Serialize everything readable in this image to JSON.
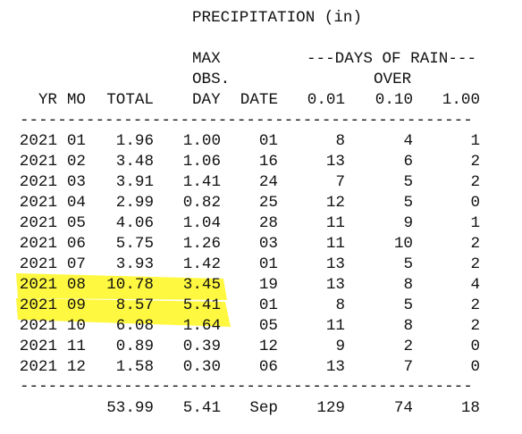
{
  "title": "PRECIPITATION (in)",
  "header": {
    "max_lines": [
      "MAX",
      "OBS.",
      "DAY"
    ],
    "rain_group": "---DAYS OF RAIN---",
    "rain_over": "OVER",
    "columns": [
      "YR",
      "MO",
      "TOTAL",
      "DATE",
      "0.01",
      "0.10",
      "1.00"
    ]
  },
  "separator": "------------------------------------------------",
  "rows": [
    [
      "2021",
      "01",
      "1.96",
      "1.00",
      "01",
      "8",
      "4",
      "1"
    ],
    [
      "2021",
      "02",
      "3.48",
      "1.06",
      "16",
      "13",
      "6",
      "2"
    ],
    [
      "2021",
      "03",
      "3.91",
      "1.41",
      "24",
      "7",
      "5",
      "2"
    ],
    [
      "2021",
      "04",
      "2.99",
      "0.82",
      "25",
      "12",
      "5",
      "0"
    ],
    [
      "2021",
      "05",
      "4.06",
      "1.04",
      "28",
      "11",
      "9",
      "1"
    ],
    [
      "2021",
      "06",
      "5.75",
      "1.26",
      "03",
      "11",
      "10",
      "2"
    ],
    [
      "2021",
      "07",
      "3.93",
      "1.42",
      "01",
      "13",
      "5",
      "2"
    ],
    [
      "2021",
      "08",
      "10.78",
      "3.45",
      "19",
      "13",
      "8",
      "4"
    ],
    [
      "2021",
      "09",
      "8.57",
      "5.41",
      "01",
      "8",
      "5",
      "2"
    ],
    [
      "2021",
      "10",
      "6.08",
      "1.64",
      "05",
      "11",
      "8",
      "2"
    ],
    [
      "2021",
      "11",
      "0.89",
      "0.39",
      "12",
      "9",
      "2",
      "0"
    ],
    [
      "2021",
      "12",
      "1.58",
      "0.30",
      "06",
      "13",
      "7",
      "0"
    ]
  ],
  "totals": [
    "53.99",
    "5.41",
    "Sep",
    "129",
    "74",
    "18"
  ]
}
